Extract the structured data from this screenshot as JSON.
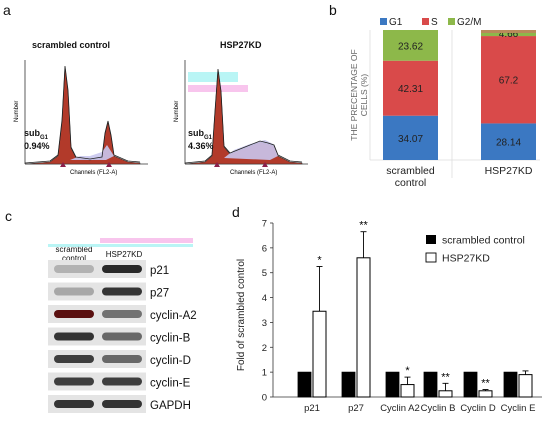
{
  "panel_labels": {
    "a": "a",
    "b": "b",
    "c": "c",
    "d": "d"
  },
  "panel_a": {
    "histograms": [
      {
        "title": "scrambled control",
        "sub_prefix": "sub",
        "sub_suffix": "G1",
        "percent": "0.94%",
        "x_label": "Channels (FL2-A)",
        "y_label": "Number"
      },
      {
        "title": "HSP27KD",
        "sub_prefix": "sub",
        "sub_suffix": "G1",
        "percent": "4.36%",
        "x_label": "Channels (FL2-A)",
        "y_label": "Number"
      }
    ]
  },
  "panel_c": {
    "column_labels": {
      "control_line1": "scrambled",
      "control_line2": "control",
      "kd": "HSP27KD"
    },
    "bands": [
      "p21",
      "p27",
      "cyclin-A2",
      "cyclin-B",
      "cyclin-D",
      "cyclin-E",
      "GAPDH"
    ]
  },
  "colors": {
    "G1": "#3b78c2",
    "S": "#d94a4a",
    "G2M": "#8db84a",
    "bar_black": "#000000",
    "bar_white": "#ffffff"
  },
  "chart_data": [
    {
      "type": "bar",
      "subtype": "stacked-100",
      "categories": [
        "scrambled\ncontrol",
        "HSP27KD"
      ],
      "series": [
        {
          "name": "G1",
          "values": [
            34.07,
            28.14
          ]
        },
        {
          "name": "S",
          "values": [
            42.31,
            67.2
          ]
        },
        {
          "name": "G2/M",
          "values": [
            23.62,
            4.66
          ]
        }
      ],
      "ylabel": "THE PRECENTAGE OF CELLS (%)",
      "legend": "top"
    },
    {
      "type": "bar",
      "categories": [
        "p21",
        "p27",
        "Cyclin A2",
        "Cyclin B",
        "Cyclin D",
        "Cyclin E"
      ],
      "series": [
        {
          "name": "scrambled control",
          "values": [
            1,
            1,
            1,
            1,
            1,
            1
          ]
        },
        {
          "name": "HSP27KD",
          "values": [
            3.45,
            5.6,
            0.5,
            0.25,
            0.25,
            0.9
          ],
          "errors": [
            1.8,
            1.05,
            0.3,
            0.3,
            0.05,
            0.15
          ]
        }
      ],
      "significance": [
        "*",
        "**",
        "*",
        "**",
        "**",
        ""
      ],
      "ylabel": "Fold of scrambled control",
      "ylim": [
        0,
        7
      ],
      "yticks": [
        0,
        1,
        2,
        3,
        4,
        5,
        6,
        7
      ],
      "legend": "top-right"
    }
  ]
}
